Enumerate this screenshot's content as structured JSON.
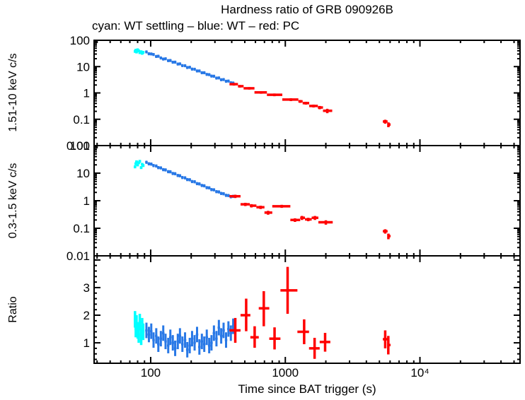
{
  "title": "Hardness ratio of GRB 090926B",
  "subtitle": "cyan: WT settling – blue: WT – red: PC",
  "xlabel": "Time since BAT trigger (s)",
  "legend": {
    "cyan": "WT settling",
    "blue": "WT",
    "red": "PC"
  },
  "colors": {
    "cyan": "#00ffff",
    "blue": "#2878e6",
    "red": "#ff0000",
    "frame": "#000000",
    "background": "#ffffff"
  },
  "xaxis": {
    "scale": "log",
    "xlim": [
      38,
      55400
    ],
    "ticks": {
      "values": [
        100,
        1000,
        10000
      ],
      "labels": [
        "100",
        "1000",
        "10⁴"
      ]
    }
  },
  "chart_data": [
    {
      "type": "scatter",
      "panel": "hard_band",
      "ylabel": "1.51-10 keV c/s",
      "yscale": "log",
      "ylim": [
        0.01,
        100
      ],
      "grid": false,
      "yticks": {
        "values": [
          100,
          10,
          1,
          0.1,
          0.01
        ],
        "labels": [
          "100",
          "10",
          "1",
          "0.1",
          "0.01"
        ]
      },
      "series": [
        {
          "name": "WT settling",
          "color_key": "cyan",
          "terr": 0.01,
          "verr": 0.12,
          "stroke": 3.5,
          "points": [
            [
              76.5,
              38
            ],
            [
              77.5,
              42
            ],
            [
              78.5,
              36
            ],
            [
              80,
              44
            ],
            [
              81.5,
              40
            ],
            [
              83,
              34
            ],
            [
              85,
              37
            ],
            [
              86.5,
              32
            ],
            [
              88,
              35
            ]
          ]
        },
        {
          "name": "WT",
          "color_key": "blue",
          "terr": 0.015,
          "verr": 0.13,
          "stroke": 3,
          "points": [
            [
              93,
              36.5
            ],
            [
              97,
              31
            ],
            [
              101,
              30.5
            ],
            [
              105,
              29
            ],
            [
              110,
              24.5
            ],
            [
              114,
              25
            ],
            [
              119,
              21.5
            ],
            [
              124,
              19.5
            ],
            [
              129,
              20
            ],
            [
              135,
              17
            ],
            [
              140,
              17.2
            ],
            [
              146,
              14.8
            ],
            [
              152,
              14.9
            ],
            [
              159,
              12.6
            ],
            [
              165,
              12.8
            ],
            [
              172,
              11.0
            ],
            [
              180,
              10.9
            ],
            [
              187,
              9.3
            ],
            [
              195,
              9.5
            ],
            [
              203,
              8.1
            ],
            [
              212,
              8.0
            ],
            [
              221,
              6.9
            ],
            [
              230,
              6.9
            ],
            [
              240,
              5.9
            ],
            [
              250,
              5.9
            ],
            [
              261,
              5.1
            ],
            [
              272,
              5.0
            ],
            [
              283,
              4.4
            ],
            [
              295,
              4.35
            ],
            [
              308,
              3.7
            ],
            [
              321,
              3.75
            ],
            [
              334,
              3.2
            ],
            [
              348,
              3.25
            ],
            [
              363,
              2.8
            ],
            [
              378,
              2.85
            ],
            [
              394,
              2.45
            ],
            [
              410,
              2.4
            ]
          ]
        },
        {
          "name": "PC",
          "color_key": "red",
          "stroke": 3.5,
          "points_err": [
            [
              415,
              385,
              445,
              2.15,
              1.9,
              2.4
            ],
            [
              460,
              445,
              490,
              1.8,
              1.6,
              2.0
            ],
            [
              540,
              490,
              590,
              1.5,
              1.35,
              1.65
            ],
            [
              660,
              590,
              730,
              1.05,
              0.93,
              1.17
            ],
            [
              830,
              730,
              950,
              0.85,
              0.75,
              0.95
            ],
            [
              1100,
              950,
              1250,
              0.56,
              0.49,
              0.63
            ],
            [
              1290,
              1250,
              1345,
              0.48,
              0.42,
              0.54
            ],
            [
              1420,
              1345,
              1505,
              0.41,
              0.36,
              0.46
            ],
            [
              1620,
              1505,
              1745,
              0.32,
              0.28,
              0.36
            ],
            [
              1800,
              1745,
              1905,
              0.28,
              0.24,
              0.32
            ],
            [
              2050,
              1905,
              2230,
              0.21,
              0.17,
              0.25
            ],
            [
              5520,
              5300,
              5750,
              0.082,
              0.068,
              0.096
            ],
            [
              5830,
              5750,
              6050,
              0.063,
              0.05,
              0.076
            ]
          ]
        }
      ]
    },
    {
      "type": "scatter",
      "panel": "soft_band",
      "ylabel": "0.3-1.5 keV c/s",
      "yscale": "log",
      "ylim": [
        0.01,
        100
      ],
      "grid": false,
      "yticks": {
        "values": [
          100,
          10,
          1,
          0.1,
          0.01
        ],
        "labels": [
          "100",
          "10",
          "1",
          "0.1",
          "0.01"
        ]
      },
      "series": [
        {
          "name": "WT settling",
          "color_key": "cyan",
          "terr": 0.01,
          "verr": 0.12,
          "stroke": 3.5,
          "points": [
            [
              76.5,
              17
            ],
            [
              77.5,
              22
            ],
            [
              78.5,
              26
            ],
            [
              80,
              20
            ],
            [
              81.5,
              24
            ],
            [
              83,
              27
            ],
            [
              85,
              16
            ],
            [
              86.5,
              21
            ],
            [
              88,
              19
            ]
          ]
        },
        {
          "name": "WT",
          "color_key": "blue",
          "terr": 0.015,
          "verr": 0.13,
          "stroke": 3,
          "points": [
            [
              93,
              25
            ],
            [
              97,
              22
            ],
            [
              101,
              21.5
            ],
            [
              105,
              19
            ],
            [
              110,
              18.3
            ],
            [
              114,
              16
            ],
            [
              119,
              15.6
            ],
            [
              124,
              13.5
            ],
            [
              129,
              13.2
            ],
            [
              135,
              11.4
            ],
            [
              140,
              11.3
            ],
            [
              146,
              9.8
            ],
            [
              152,
              9.6
            ],
            [
              159,
              8.3
            ],
            [
              165,
              8.1
            ],
            [
              172,
              7.0
            ],
            [
              180,
              6.8
            ],
            [
              187,
              5.9
            ],
            [
              195,
              5.8
            ],
            [
              203,
              5.0
            ],
            [
              212,
              4.9
            ],
            [
              221,
              4.2
            ],
            [
              230,
              4.1
            ],
            [
              240,
              3.6
            ],
            [
              250,
              3.5
            ],
            [
              261,
              3.0
            ],
            [
              272,
              2.95
            ],
            [
              283,
              2.55
            ],
            [
              295,
              2.5
            ],
            [
              308,
              2.15
            ],
            [
              321,
              2.1
            ],
            [
              334,
              1.85
            ],
            [
              348,
              1.8
            ],
            [
              363,
              1.58
            ],
            [
              378,
              1.55
            ],
            [
              394,
              1.4
            ],
            [
              410,
              1.45
            ]
          ]
        },
        {
          "name": "PC",
          "color_key": "red",
          "stroke": 3.5,
          "points_err": [
            [
              425,
              385,
              465,
              1.45,
              1.25,
              1.65
            ],
            [
              505,
              465,
              545,
              0.74,
              0.64,
              0.84
            ],
            [
              560,
              545,
              610,
              0.66,
              0.57,
              0.75
            ],
            [
              655,
              610,
              700,
              0.58,
              0.5,
              0.66
            ],
            [
              745,
              700,
              800,
              0.37,
              0.31,
              0.43
            ],
            [
              940,
              800,
              1090,
              0.63,
              0.55,
              0.71
            ],
            [
              1180,
              1090,
              1290,
              0.2,
              0.17,
              0.23
            ],
            [
              1330,
              1290,
              1400,
              0.24,
              0.2,
              0.28
            ],
            [
              1480,
              1400,
              1570,
              0.21,
              0.18,
              0.24
            ],
            [
              1660,
              1570,
              1760,
              0.24,
              0.2,
              0.28
            ],
            [
              2000,
              1760,
              2250,
              0.165,
              0.135,
              0.195
            ],
            [
              5520,
              5300,
              5750,
              0.078,
              0.064,
              0.092
            ],
            [
              5830,
              5750,
              6050,
              0.052,
              0.04,
              0.064
            ]
          ]
        }
      ]
    },
    {
      "type": "scatter",
      "panel": "ratio",
      "ylabel": "Ratio",
      "yscale": "linear",
      "ylim": [
        0.26,
        4.15
      ],
      "grid": false,
      "yticks": {
        "values": [
          3,
          2,
          1
        ],
        "labels": [
          "3",
          "2",
          "1"
        ]
      },
      "series": [
        {
          "name": "WT settling",
          "color_key": "cyan",
          "terr": 0.012,
          "verr_abs": 0.3,
          "stroke": 3.5,
          "points": [
            [
              76.5,
              1.85
            ],
            [
              77.5,
              1.5
            ],
            [
              78.5,
              1.7
            ],
            [
              80,
              1.45
            ],
            [
              81.5,
              1.3
            ],
            [
              83,
              1.75
            ],
            [
              85,
              1.22
            ],
            [
              86.5,
              1.6
            ],
            [
              88,
              1.4
            ]
          ]
        },
        {
          "name": "WT",
          "color_key": "blue",
          "terr": 0.015,
          "verr_abs": 0.28,
          "stroke": 3,
          "points": [
            [
              93,
              1.45
            ],
            [
              97,
              1.3
            ],
            [
              101,
              1.42
            ],
            [
              105,
              1.1
            ],
            [
              110,
              1.25
            ],
            [
              114,
              0.95
            ],
            [
              119,
              1.15
            ],
            [
              124,
              1.35
            ],
            [
              129,
              1.05
            ],
            [
              135,
              0.9
            ],
            [
              140,
              1.2
            ],
            [
              146,
              1.0
            ],
            [
              152,
              0.8
            ],
            [
              159,
              1.05
            ],
            [
              165,
              1.25
            ],
            [
              172,
              0.95
            ],
            [
              180,
              1.1
            ],
            [
              187,
              0.75
            ],
            [
              195,
              0.9
            ],
            [
              203,
              1.15
            ],
            [
              212,
              1.0
            ],
            [
              221,
              1.3
            ],
            [
              230,
              0.85
            ],
            [
              240,
              1.05
            ],
            [
              250,
              0.95
            ],
            [
              261,
              1.2
            ],
            [
              272,
              0.9
            ],
            [
              283,
              1.0
            ],
            [
              295,
              1.35
            ],
            [
              308,
              1.15
            ],
            [
              321,
              1.55
            ],
            [
              334,
              1.25
            ],
            [
              348,
              1.45
            ],
            [
              363,
              1.1
            ],
            [
              378,
              1.5
            ],
            [
              394,
              1.35
            ],
            [
              410,
              1.6
            ]
          ]
        },
        {
          "name": "PC",
          "color_key": "red",
          "stroke": 3.5,
          "points_err": [
            [
              425,
              385,
              465,
              1.45,
              1.0,
              1.9
            ],
            [
              512,
              465,
              550,
              2.0,
              1.42,
              2.6
            ],
            [
              592,
              550,
              635,
              1.2,
              0.82,
              1.6
            ],
            [
              692,
              635,
              760,
              2.25,
              1.6,
              2.87
            ],
            [
              832,
              760,
              920,
              1.15,
              0.76,
              1.56
            ],
            [
              1040,
              920,
              1230,
              2.9,
              2.05,
              3.75
            ],
            [
              1380,
              1230,
              1500,
              1.4,
              0.95,
              1.85
            ],
            [
              1650,
              1500,
              1800,
              0.8,
              0.42,
              1.18
            ],
            [
              1975,
              1800,
              2160,
              1.03,
              0.68,
              1.36
            ],
            [
              5520,
              5300,
              5750,
              1.13,
              0.8,
              1.45
            ],
            [
              5820,
              5750,
              6050,
              0.92,
              0.58,
              1.25
            ]
          ]
        }
      ]
    }
  ]
}
